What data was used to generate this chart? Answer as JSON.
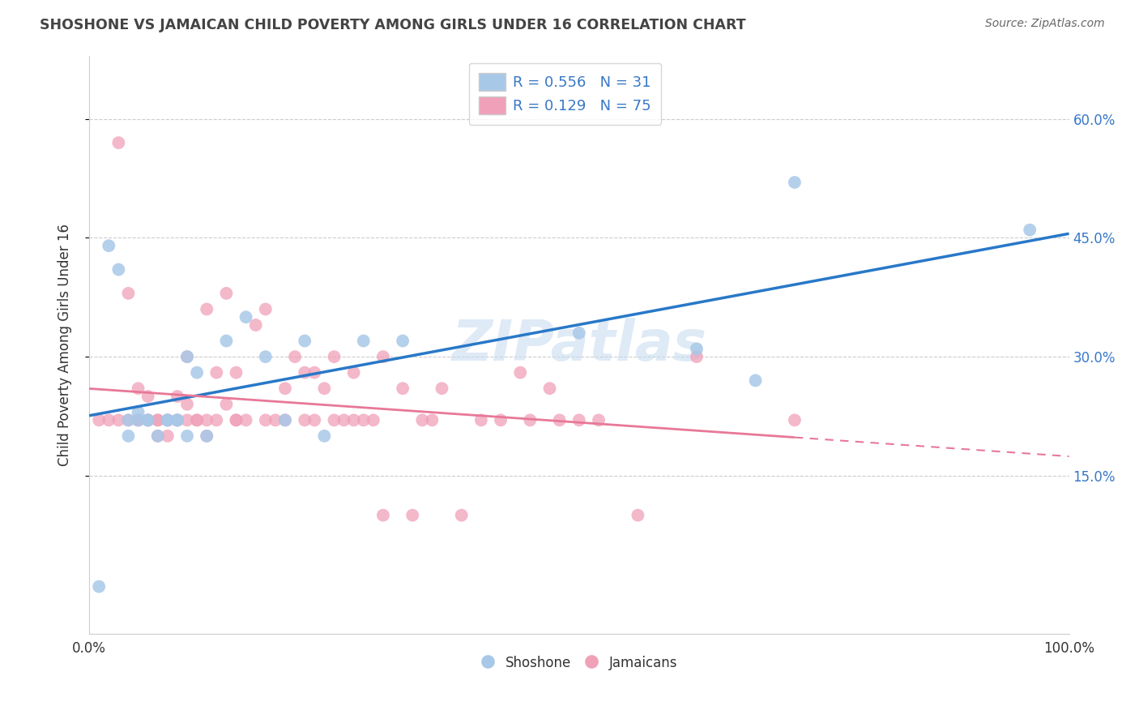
{
  "title": "SHOSHONE VS JAMAICAN CHILD POVERTY AMONG GIRLS UNDER 16 CORRELATION CHART",
  "source": "Source: ZipAtlas.com",
  "ylabel": "Child Poverty Among Girls Under 16",
  "xlim": [
    0,
    1.0
  ],
  "ylim": [
    -0.05,
    0.68
  ],
  "yticks": [
    0.15,
    0.3,
    0.45,
    0.6
  ],
  "ytick_labels": [
    "15.0%",
    "30.0%",
    "45.0%",
    "60.0%"
  ],
  "xticks": [
    0.0,
    1.0
  ],
  "xtick_labels": [
    "0.0%",
    "100.0%"
  ],
  "shoshone_R": 0.556,
  "shoshone_N": 31,
  "jamaican_R": 0.129,
  "jamaican_N": 75,
  "shoshone_color": "#a8c8e8",
  "jamaican_color": "#f0a0b8",
  "shoshone_line_color": "#2878c8",
  "jamaican_line_color": "#e87898",
  "axis_label_color": "#3878c8",
  "watermark": "ZIPatlas",
  "shoshone_x": [
    0.01,
    0.02,
    0.03,
    0.04,
    0.04,
    0.05,
    0.05,
    0.06,
    0.06,
    0.07,
    0.08,
    0.08,
    0.09,
    0.09,
    0.1,
    0.1,
    0.11,
    0.12,
    0.14,
    0.16,
    0.18,
    0.2,
    0.22,
    0.24,
    0.28,
    0.32,
    0.5,
    0.62,
    0.68,
    0.72,
    0.96
  ],
  "shoshone_y": [
    0.01,
    0.44,
    0.41,
    0.2,
    0.22,
    0.22,
    0.23,
    0.22,
    0.22,
    0.2,
    0.22,
    0.22,
    0.22,
    0.22,
    0.2,
    0.3,
    0.28,
    0.2,
    0.32,
    0.35,
    0.3,
    0.22,
    0.32,
    0.2,
    0.32,
    0.32,
    0.33,
    0.31,
    0.27,
    0.52,
    0.46
  ],
  "jamaican_x": [
    0.01,
    0.02,
    0.03,
    0.03,
    0.04,
    0.04,
    0.05,
    0.05,
    0.05,
    0.06,
    0.06,
    0.06,
    0.07,
    0.07,
    0.07,
    0.08,
    0.08,
    0.08,
    0.09,
    0.09,
    0.09,
    0.1,
    0.1,
    0.1,
    0.11,
    0.11,
    0.12,
    0.12,
    0.12,
    0.13,
    0.13,
    0.14,
    0.14,
    0.15,
    0.15,
    0.15,
    0.16,
    0.17,
    0.18,
    0.18,
    0.19,
    0.2,
    0.2,
    0.21,
    0.22,
    0.22,
    0.23,
    0.23,
    0.24,
    0.25,
    0.25,
    0.26,
    0.27,
    0.27,
    0.28,
    0.29,
    0.3,
    0.3,
    0.32,
    0.33,
    0.34,
    0.35,
    0.36,
    0.38,
    0.4,
    0.42,
    0.44,
    0.45,
    0.47,
    0.48,
    0.5,
    0.52,
    0.56,
    0.62,
    0.72
  ],
  "jamaican_y": [
    0.22,
    0.22,
    0.57,
    0.22,
    0.38,
    0.22,
    0.22,
    0.26,
    0.22,
    0.22,
    0.22,
    0.25,
    0.2,
    0.22,
    0.22,
    0.2,
    0.22,
    0.22,
    0.22,
    0.25,
    0.22,
    0.22,
    0.24,
    0.3,
    0.22,
    0.22,
    0.2,
    0.22,
    0.36,
    0.28,
    0.22,
    0.24,
    0.38,
    0.22,
    0.22,
    0.28,
    0.22,
    0.34,
    0.22,
    0.36,
    0.22,
    0.26,
    0.22,
    0.3,
    0.22,
    0.28,
    0.22,
    0.28,
    0.26,
    0.22,
    0.3,
    0.22,
    0.22,
    0.28,
    0.22,
    0.22,
    0.3,
    0.1,
    0.26,
    0.1,
    0.22,
    0.22,
    0.26,
    0.1,
    0.22,
    0.22,
    0.28,
    0.22,
    0.26,
    0.22,
    0.22,
    0.22,
    0.1,
    0.3,
    0.22
  ]
}
